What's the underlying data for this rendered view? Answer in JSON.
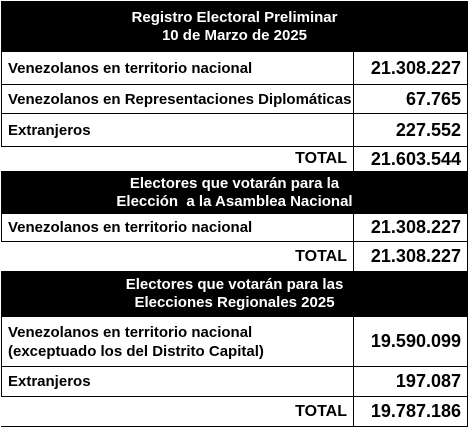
{
  "sections": [
    {
      "title": [
        "Registro Electoral Preliminar",
        "10 de Marzo de 2025"
      ],
      "rows": [
        {
          "label": [
            "Venezolanos en territorio nacional"
          ],
          "value": "21.308.227"
        },
        {
          "label": [
            "Venezolanos en Representaciones Diplomáticas"
          ],
          "value": "67.765"
        },
        {
          "label": [
            "Extranjeros"
          ],
          "value": "227.552"
        }
      ],
      "total": {
        "label": "TOTAL",
        "value": "21.603.544"
      }
    },
    {
      "title": [
        "Electores que votarán para la",
        "Elección  a la Asamblea Nacional"
      ],
      "rows": [
        {
          "label": [
            "Venezolanos en territorio nacional"
          ],
          "value": "21.308.227"
        }
      ],
      "total": {
        "label": "TOTAL",
        "value": "21.308.227"
      }
    },
    {
      "title": [
        "Electores que votarán para las",
        "Elecciones Regionales 2025"
      ],
      "rows": [
        {
          "label": [
            "Venezolanos en territorio nacional",
            "(exceptuado los del Distrito Capital)"
          ],
          "value": "19.590.099"
        },
        {
          "label": [
            "Extranjeros"
          ],
          "value": "197.087"
        }
      ],
      "total": {
        "label": "TOTAL",
        "value": "19.787.186"
      }
    }
  ]
}
